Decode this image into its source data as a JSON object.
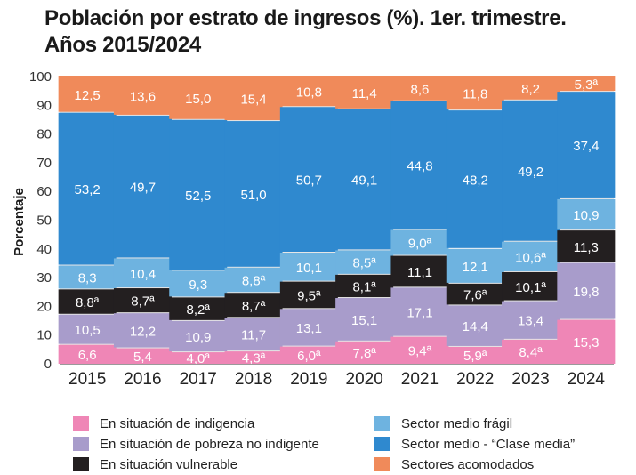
{
  "title_line1": "Población por estrato de ingresos (%). 1er. trimestre.",
  "title_line2": "Años 2015/2024",
  "chart_data": {
    "type": "bar",
    "stacked": true,
    "ylabel": "Porcentaje",
    "ylim": [
      0,
      100
    ],
    "yticks": [
      0,
      10,
      20,
      30,
      40,
      50,
      60,
      70,
      80,
      90,
      100
    ],
    "categories": [
      "2015",
      "2016",
      "2017",
      "2018",
      "2019",
      "2020",
      "2021",
      "2022",
      "2023",
      "2024"
    ],
    "series": [
      {
        "name": "En situación de indigencia",
        "color": "#ef86b6",
        "text_color": "#ffffff",
        "values": [
          6.6,
          5.4,
          4.0,
          4.3,
          6.0,
          7.8,
          9.4,
          5.9,
          8.4,
          15.3
        ],
        "labels": [
          "6,6",
          "5,4",
          "4,0ª",
          "4,3ª",
          "6,0ª",
          "7,8ª",
          "9,4ª",
          "5,9ª",
          "8,4ª",
          "15,3"
        ]
      },
      {
        "name": "En situación de pobreza no indigente",
        "color": "#a89ccb",
        "text_color": "#ffffff",
        "values": [
          10.5,
          12.2,
          10.9,
          11.7,
          13.1,
          15.1,
          17.1,
          14.4,
          13.4,
          19.8
        ],
        "labels": [
          "10,5",
          "12,2",
          "10,9",
          "11,7",
          "13,1",
          "15,1",
          "17,1",
          "14,4",
          "13,4",
          "19,8"
        ]
      },
      {
        "name": "En situación vulnerable",
        "color": "#231f20",
        "text_color": "#ffffff",
        "values": [
          8.8,
          8.7,
          8.2,
          8.7,
          9.5,
          8.1,
          11.1,
          7.6,
          10.1,
          11.3
        ],
        "labels": [
          "8,8ª",
          "8,7ª",
          "8,2ª",
          "8,7ª",
          "9,5ª",
          "8,1ª",
          "11,1",
          "7,6ª",
          "10,1ª",
          "11,3"
        ]
      },
      {
        "name": "Sector medio frágil",
        "color": "#6eb3e0",
        "text_color": "#ffffff",
        "values": [
          8.3,
          10.4,
          9.3,
          8.8,
          10.1,
          8.5,
          9.0,
          12.1,
          10.6,
          10.9
        ],
        "labels": [
          "8,3",
          "10,4",
          "9,3",
          "8,8ª",
          "10,1",
          "8,5ª",
          "9,0ª",
          "12,1",
          "10,6ª",
          "10,9"
        ]
      },
      {
        "name": "Sector medio - “Clase media”",
        "color": "#2f89cf",
        "text_color": "#ffffff",
        "values": [
          53.2,
          49.7,
          52.5,
          51.0,
          50.7,
          49.1,
          44.8,
          48.2,
          49.2,
          37.4
        ],
        "labels": [
          "53,2",
          "49,7",
          "52,5",
          "51,0",
          "50,7",
          "49,1",
          "44,8",
          "48,2",
          "49,2",
          "37,4"
        ]
      },
      {
        "name": "Sectores acomodados",
        "color": "#f08a5a",
        "text_color": "#ffffff",
        "values": [
          12.5,
          13.6,
          15.0,
          15.4,
          10.8,
          11.4,
          8.6,
          11.8,
          8.2,
          5.3
        ],
        "labels": [
          "12,5",
          "13,6",
          "15,0",
          "15,4",
          "10,8",
          "11,4",
          "8,6",
          "11,8",
          "8,2",
          "5,3ª"
        ]
      }
    ],
    "legend_position": "bottom",
    "grid": true
  }
}
